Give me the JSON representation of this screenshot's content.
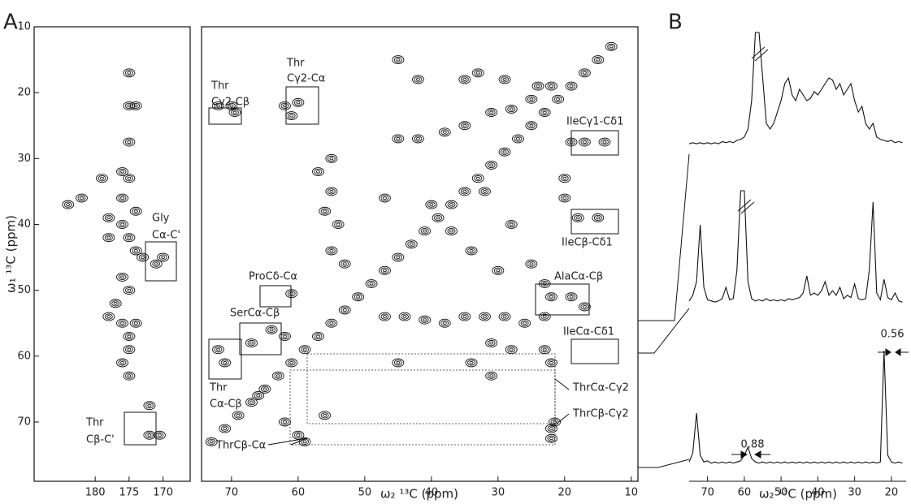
{
  "chart_data": [
    {
      "type": "contour",
      "panel_label": "A",
      "ylabel": "ω₁ ¹³C (ppm)",
      "xlim": [
        189,
        166
      ],
      "xticks": [
        180,
        175,
        170
      ],
      "ylim": [
        10,
        79
      ],
      "yticks": [
        10,
        20,
        30,
        40,
        50,
        60,
        70
      ],
      "annotations": [
        "Gly",
        "Cα-C'",
        "Thr",
        "Cβ-C'"
      ],
      "color": "#111111",
      "x": [
        175,
        175,
        174,
        175,
        176,
        175,
        176,
        174,
        176,
        175,
        174,
        173,
        171,
        170,
        178,
        178,
        182,
        184,
        179,
        176,
        175,
        177,
        178,
        176,
        174,
        175,
        175,
        176,
        175,
        172,
        172,
        170.5
      ],
      "values": [
        17,
        22,
        22,
        27.5,
        32,
        33,
        36,
        38,
        40,
        42,
        44,
        45,
        46,
        45,
        42,
        39,
        36,
        37,
        33,
        48,
        50,
        52,
        54,
        55,
        55,
        57,
        59,
        61,
        63,
        67.5,
        72,
        72
      ]
    },
    {
      "type": "contour",
      "xlabel": "ω₂ ¹³C (ppm)",
      "xlim": [
        74.5,
        9
      ],
      "xticks": [
        70,
        60,
        50,
        40,
        30,
        20,
        10
      ],
      "ylim": [
        10,
        79
      ],
      "color": "#111111",
      "annotations": [
        "Thr",
        "Cγ2-Cβ",
        "Thr",
        "Cγ2-Cα",
        "IleCγ1-Cδ1",
        "IleCβ-Cδ1",
        "ProCδ-Cα",
        "AlaCα-Cβ",
        "SerCα-Cβ",
        "IleCα-Cδ1",
        "Thr",
        "Cα-Cβ",
        "ThrCα-Cγ2",
        "ThrCβ-Cγ2",
        "ThrCβ-Cα"
      ],
      "x": [
        73,
        71,
        69,
        67,
        65,
        63,
        61,
        59,
        57,
        55,
        53,
        51,
        49,
        47,
        45,
        43,
        41,
        39,
        37,
        35,
        33,
        31,
        29,
        27,
        25,
        23,
        21,
        19,
        17,
        15,
        13,
        72,
        70,
        69.5,
        62,
        60,
        61,
        55,
        55,
        54,
        55,
        53,
        56,
        57,
        45,
        42,
        38,
        35,
        31,
        28,
        25,
        22,
        47,
        40,
        37,
        34,
        30,
        32,
        28,
        25,
        23,
        19,
        17,
        14,
        18,
        15,
        22,
        19,
        17,
        61,
        62,
        64,
        67,
        71,
        72,
        47,
        44,
        41,
        38,
        35,
        32,
        29,
        26,
        23,
        31,
        28,
        34,
        31,
        23,
        22,
        60,
        62,
        59,
        22,
        22,
        21.5,
        56,
        66,
        45,
        45,
        42,
        33,
        24,
        20,
        20,
        35,
        29
      ],
      "values": [
        73,
        71,
        69,
        67,
        65,
        63,
        61,
        59,
        57,
        55,
        53,
        51,
        49,
        47,
        45,
        43,
        41,
        39,
        37,
        35,
        33,
        31,
        29,
        27,
        25,
        23,
        21,
        19,
        17,
        15,
        13,
        22,
        22,
        23,
        22,
        21.5,
        23.5,
        30,
        35,
        40,
        44,
        46,
        38,
        32,
        27,
        27,
        26,
        25,
        23,
        22.5,
        21,
        19,
        36,
        37,
        41,
        44,
        47,
        35,
        40,
        46,
        49,
        27.5,
        27.5,
        27.5,
        39,
        39,
        51,
        51,
        52.5,
        50.5,
        57,
        56,
        58,
        61,
        59,
        54,
        54,
        54.5,
        55,
        54,
        54,
        54,
        55,
        54,
        58,
        59,
        61,
        63,
        59,
        61,
        72,
        70,
        73,
        71,
        72.5,
        70,
        69,
        66,
        61,
        15,
        18,
        17,
        19,
        33,
        36,
        18,
        18
      ]
    },
    {
      "type": "line",
      "panel_label": "B",
      "xlabel": "ω₂ ¹³C (ppm)",
      "xlim": [
        75,
        16
      ],
      "xticks": [
        70,
        60,
        50,
        40,
        30,
        20
      ],
      "annotations": [
        "0.88",
        "0.56"
      ],
      "x": [
        75,
        74,
        73,
        72,
        71,
        70,
        69,
        68,
        67,
        66,
        65,
        64,
        63,
        62,
        61,
        60,
        59,
        58,
        57,
        56,
        55,
        54,
        53,
        52,
        51,
        50,
        49,
        48,
        47,
        46,
        45,
        44,
        43,
        42,
        41,
        40,
        39,
        38,
        37,
        36,
        35,
        34,
        33,
        32,
        31,
        30,
        29,
        28,
        27,
        26,
        25,
        24,
        23,
        22,
        21,
        20,
        19,
        18,
        17
      ],
      "series": [
        {
          "color": "#111111",
          "values": [
            2,
            3,
            2,
            3,
            2,
            3,
            2,
            3,
            2,
            4,
            3,
            4,
            3,
            5,
            6,
            8,
            15,
            40,
            100,
            100,
            60,
            20,
            15,
            20,
            30,
            40,
            55,
            60,
            45,
            40,
            50,
            45,
            40,
            42,
            48,
            45,
            50,
            55,
            60,
            58,
            50,
            55,
            45,
            50,
            55,
            40,
            30,
            35,
            20,
            15,
            20,
            8,
            6,
            5,
            4,
            5,
            3,
            4,
            3
          ]
        },
        {
          "color": "#111111",
          "values": [
            3,
            8,
            20,
            70,
            15,
            4,
            3,
            2,
            3,
            5,
            15,
            4,
            5,
            30,
            100,
            100,
            20,
            5,
            3,
            4,
            3,
            5,
            3,
            4,
            3,
            4,
            3,
            5,
            4,
            5,
            6,
            10,
            25,
            8,
            10,
            8,
            12,
            20,
            8,
            12,
            8,
            15,
            5,
            8,
            6,
            18,
            5,
            4,
            5,
            30,
            90,
            10,
            4,
            22,
            6,
            4,
            10,
            3,
            2
          ]
        },
        {
          "color": "#111111",
          "values": [
            2,
            10,
            45,
            8,
            2,
            3,
            1,
            2,
            1,
            2,
            1,
            2,
            1,
            2,
            3,
            8,
            15,
            5,
            2,
            1,
            2,
            1,
            2,
            1,
            2,
            1,
            2,
            1,
            2,
            1,
            2,
            1,
            2,
            1,
            2,
            1,
            2,
            1,
            2,
            1,
            2,
            1,
            2,
            1,
            2,
            1,
            2,
            1,
            2,
            1,
            2,
            1,
            2,
            100,
            8,
            2,
            1,
            2,
            1
          ]
        }
      ]
    }
  ]
}
